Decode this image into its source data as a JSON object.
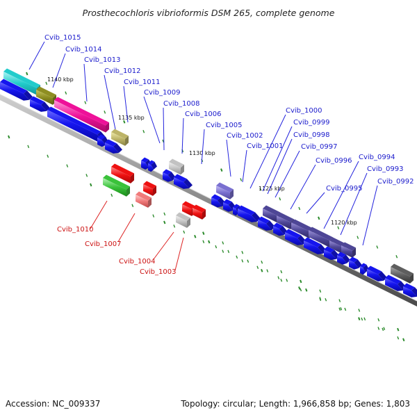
{
  "title": "Prosthecochloris vibrioformis DSM 265, complete genome",
  "footer": {
    "accession": "Accession: NC_009337",
    "summary": "Topology: circular; Length: 1,966,858 bp; Genes: 1,803"
  },
  "colors": {
    "axis": "#888888",
    "forward_gene": "#1010ee",
    "reverse_gene": "#ee1111",
    "ticks": "#2a8a2a",
    "top_label": "#1a1acc",
    "bottom_label": "#cc1111"
  },
  "tick_labels": [
    "1140 kbp",
    "1135 kbp",
    "1130 kbp",
    "1125 kbp",
    "1120 kbp"
  ],
  "top_genes": [
    "Cvib_1015",
    "Cvib_1014",
    "Cvib_1013",
    "Cvib_1012",
    "Cvib_1011",
    "Cvib_1009",
    "Cvib_1008",
    "Cvib_1006",
    "Cvib_1005",
    "Cvib_1002",
    "Cvib_1001",
    "Cvib_1000",
    "Cvib_0999",
    "Cvib_0998",
    "Cvib_0997",
    "Cvib_0996",
    "Cvib_0995",
    "Cvib_0994",
    "Cvib_0993",
    "Cvib_0992"
  ],
  "bottom_genes": [
    "Cvib_1010",
    "Cvib_1007",
    "Cvib_1004",
    "Cvib_1003"
  ]
}
